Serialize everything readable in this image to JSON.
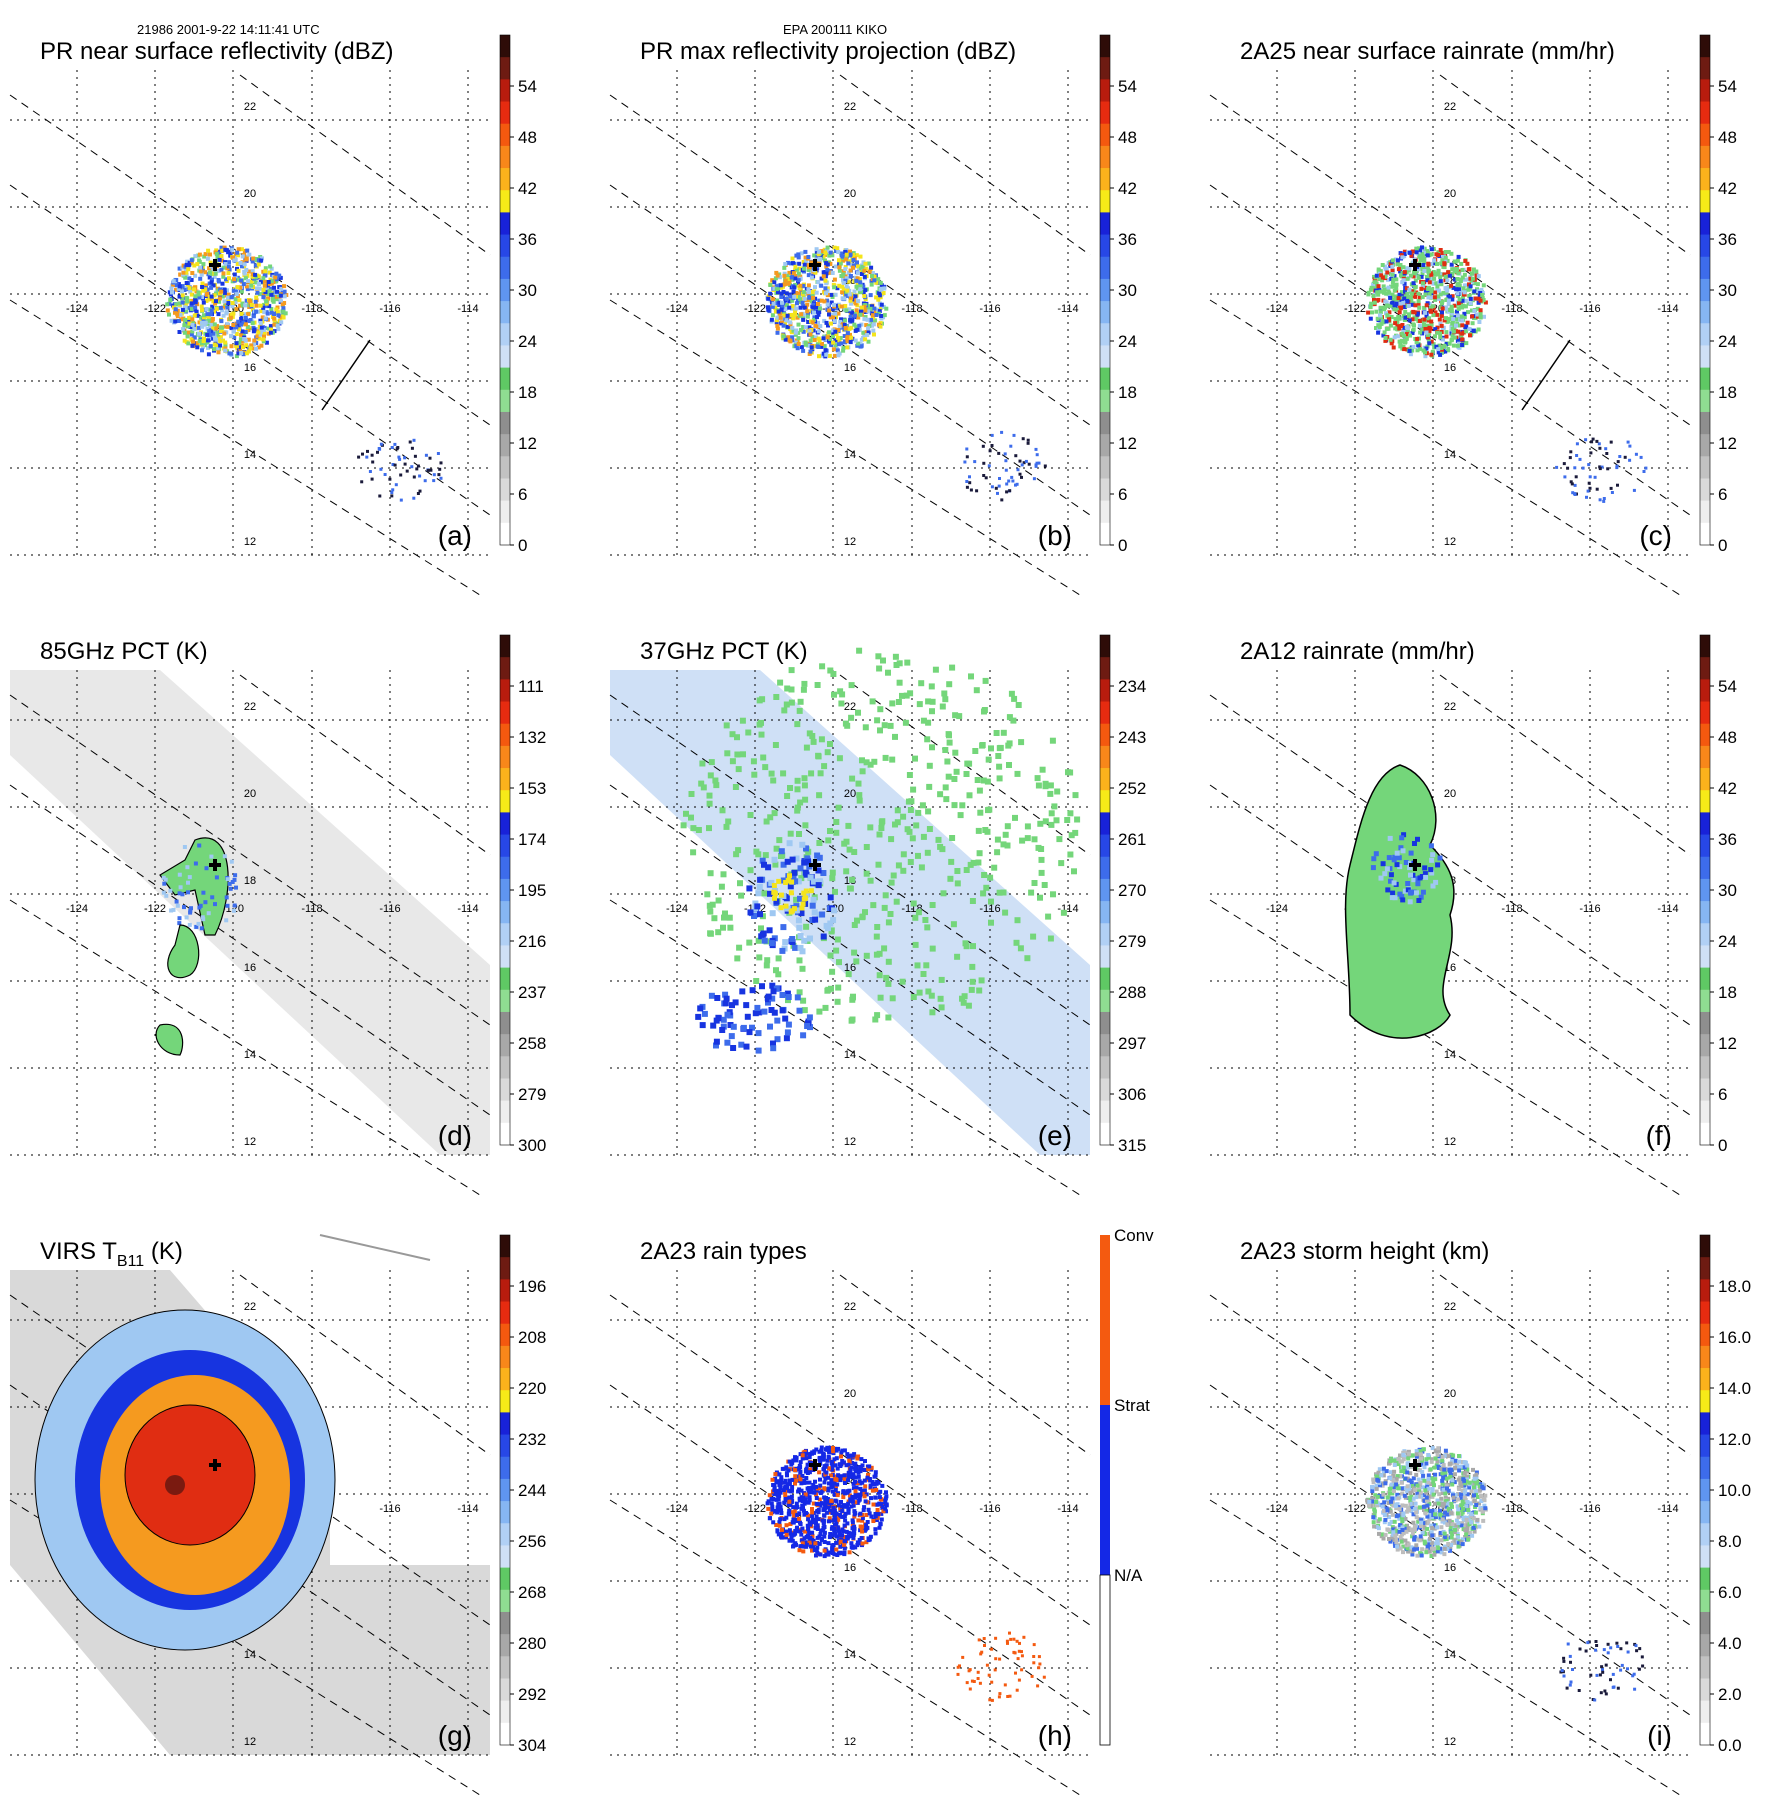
{
  "header": {
    "left": "21986 2001-9-22 14:11:41 UTC",
    "center": "EPA 200111 KIKO"
  },
  "grid_labels": {
    "lat": [
      "22",
      "20",
      "18",
      "16",
      "14",
      "12"
    ],
    "lon": [
      "-124",
      "-122",
      "-120",
      "-118",
      "-116",
      "-114"
    ]
  },
  "colors": {
    "green": "#74d67a",
    "lightblue": "#9fc8f2",
    "blue": "#1734e0",
    "yellow": "#f4e41c",
    "orange": "#f59a1f",
    "red": "#e02d12",
    "darkred": "#7a1a10",
    "gray": "#b9b9b9",
    "rainorange": "#f45a10"
  },
  "chart_data": [
    {
      "id": "a",
      "type": "heatmap",
      "title": "PR near surface reflectivity (dBZ)",
      "panel_label": "(a)",
      "colorbar_ticks": [
        "54",
        "48",
        "42",
        "36",
        "30",
        "24",
        "18",
        "12",
        "6",
        "0"
      ],
      "colorbar_range": [
        0,
        60
      ],
      "swath": "pr",
      "storm": "pr",
      "center_mark": true
    },
    {
      "id": "b",
      "type": "heatmap",
      "title": "PR max reflectivity projection (dBZ)",
      "panel_label": "(b)",
      "colorbar_ticks": [
        "54",
        "48",
        "42",
        "36",
        "30",
        "24",
        "18",
        "12",
        "6",
        "0"
      ],
      "colorbar_range": [
        0,
        60
      ],
      "swath": "pr",
      "storm": "pr",
      "center_mark": true
    },
    {
      "id": "c",
      "type": "heatmap",
      "title": "2A25 near surface rainrate (mm/hr)",
      "panel_label": "(c)",
      "colorbar_ticks": [
        "54",
        "48",
        "42",
        "36",
        "30",
        "24",
        "18",
        "12",
        "6",
        "0"
      ],
      "colorbar_range": [
        0,
        60
      ],
      "swath": "pr",
      "storm": "pr",
      "center_mark": true
    },
    {
      "id": "d",
      "type": "heatmap",
      "title": "85GHz PCT (K)",
      "panel_label": "(d)",
      "colorbar_ticks": [
        "111",
        "132",
        "153",
        "174",
        "195",
        "216",
        "237",
        "258",
        "279",
        "300"
      ],
      "colorbar_range": [
        300,
        90
      ],
      "swath": "tmi",
      "storm": "tmi85",
      "center_mark": true
    },
    {
      "id": "e",
      "type": "heatmap",
      "title": "37GHz PCT (K)",
      "panel_label": "(e)",
      "colorbar_ticks": [
        "234",
        "243",
        "252",
        "261",
        "270",
        "279",
        "288",
        "297",
        "306",
        "315"
      ],
      "colorbar_range": [
        315,
        225
      ],
      "swath": "tmi",
      "storm": "tmi37",
      "center_mark": true
    },
    {
      "id": "f",
      "type": "heatmap",
      "title": "2A12 rainrate (mm/hr)",
      "panel_label": "(f)",
      "colorbar_ticks": [
        "54",
        "48",
        "42",
        "36",
        "30",
        "24",
        "18",
        "12",
        "6",
        "0"
      ],
      "colorbar_range": [
        0,
        60
      ],
      "swath": "pr",
      "storm": "rain12",
      "center_mark": true
    },
    {
      "id": "g",
      "type": "heatmap",
      "title": "VIRS T",
      "title_sub": "B11",
      "title_tail": " (K)",
      "panel_label": "(g)",
      "colorbar_ticks": [
        "196",
        "208",
        "220",
        "232",
        "244",
        "256",
        "268",
        "280",
        "292",
        "304"
      ],
      "colorbar_range": [
        304,
        184
      ],
      "swath": "virs",
      "storm": "virs",
      "center_mark": true
    },
    {
      "id": "h",
      "type": "heatmap",
      "title": "2A23 rain types",
      "panel_label": "(h)",
      "colorbar_categories": [
        "Conv",
        "Strat",
        "N/A"
      ],
      "swath": "pr",
      "storm": "types",
      "center_mark": true
    },
    {
      "id": "i",
      "type": "heatmap",
      "title": "2A23 storm height (km)",
      "panel_label": "(i)",
      "colorbar_ticks": [
        "18.0",
        "16.0",
        "14.0",
        "12.0",
        "10.0",
        "8.0",
        "6.0",
        "4.0",
        "2.0",
        "0.0"
      ],
      "colorbar_range": [
        0,
        20
      ],
      "swath": "pr",
      "storm": "height",
      "center_mark": true
    }
  ]
}
